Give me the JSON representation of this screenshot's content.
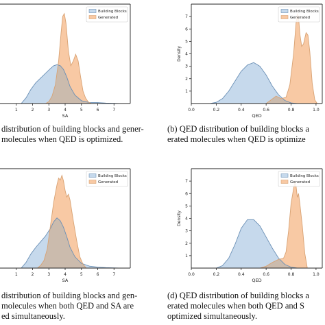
{
  "colors": {
    "building_fill": "#c6d9ec",
    "building_line": "#6a8fb5",
    "generated_fill": "#f8c9a4",
    "generated_line": "#d8a273",
    "overlap_fill": "#cbbbad"
  },
  "legend": {
    "building": "Building Blocks",
    "generated": "Generated"
  },
  "chart_data": [
    {
      "panel": "a",
      "type": "area",
      "metric": "SA",
      "xlabel": "SA",
      "ylabel": "",
      "xlim": [
        0,
        8
      ],
      "ylim": [
        0,
        1.05
      ],
      "xticks": [
        1,
        2,
        3,
        4,
        5,
        6,
        7
      ],
      "xtick_labels": [
        "1",
        "2",
        "3",
        "4",
        "5",
        "6",
        "7"
      ],
      "yticks": [],
      "ytick_labels": [],
      "legend_position": "top-right",
      "series": [
        {
          "name": "Building Blocks",
          "x": [
            1.3,
            1.6,
            1.9,
            2.2,
            2.5,
            2.8,
            3.1,
            3.3,
            3.5,
            3.7,
            3.9,
            4.1,
            4.3,
            4.6,
            5.0,
            5.5,
            6.0,
            6.5,
            7.0,
            7.3
          ],
          "y": [
            0,
            0.06,
            0.15,
            0.22,
            0.27,
            0.32,
            0.37,
            0.4,
            0.41,
            0.4,
            0.36,
            0.28,
            0.18,
            0.09,
            0.03,
            0.01,
            0.01,
            0.005,
            0.002,
            0
          ]
        },
        {
          "name": "Generated",
          "x": [
            2.8,
            3.0,
            3.2,
            3.4,
            3.6,
            3.75,
            3.85,
            3.95,
            4.05,
            4.2,
            4.35,
            4.5,
            4.65,
            4.8,
            4.95,
            5.1,
            5.25,
            5.4,
            5.6
          ],
          "y": [
            0,
            0.02,
            0.08,
            0.2,
            0.45,
            0.75,
            0.92,
            0.95,
            0.85,
            0.55,
            0.4,
            0.45,
            0.52,
            0.45,
            0.28,
            0.13,
            0.06,
            0.02,
            0
          ]
        }
      ]
    },
    {
      "panel": "b",
      "type": "area",
      "metric": "QED",
      "xlabel": "QED",
      "ylabel": "Density",
      "xlim": [
        0,
        1.05
      ],
      "ylim": [
        0,
        8
      ],
      "xticks": [
        0.0,
        0.2,
        0.4,
        0.6,
        0.8,
        1.0
      ],
      "xtick_labels": [
        "0.0",
        "0.2",
        "0.4",
        "0.6",
        "0.8",
        "1.0"
      ],
      "yticks": [
        1,
        2,
        3,
        4,
        5,
        6,
        7
      ],
      "ytick_labels": [
        "1",
        "2",
        "3",
        "4",
        "5",
        "6",
        "7"
      ],
      "legend_position": "top-right",
      "series": [
        {
          "name": "Building Blocks",
          "x": [
            0.15,
            0.2,
            0.25,
            0.3,
            0.35,
            0.4,
            0.45,
            0.5,
            0.55,
            0.6,
            0.65,
            0.7,
            0.75,
            0.8,
            0.85
          ],
          "y": [
            0,
            0.1,
            0.4,
            1.0,
            1.8,
            2.6,
            3.1,
            3.3,
            3.0,
            2.3,
            1.4,
            0.7,
            0.25,
            0.05,
            0
          ]
        },
        {
          "name": "Generated",
          "x": [
            0.6,
            0.64,
            0.68,
            0.72,
            0.76,
            0.79,
            0.82,
            0.84,
            0.85,
            0.86,
            0.87,
            0.885,
            0.9,
            0.92,
            0.935,
            0.95,
            0.97,
            0.99,
            1.01
          ],
          "y": [
            0,
            0.3,
            0.6,
            0.4,
            0.5,
            1.5,
            4.0,
            6.5,
            7.2,
            7.0,
            5.6,
            4.6,
            4.8,
            5.7,
            5.5,
            4.2,
            1.6,
            0.3,
            0
          ]
        }
      ]
    },
    {
      "panel": "c",
      "type": "area",
      "metric": "SA",
      "xlabel": "SA",
      "ylabel": "",
      "xlim": [
        0,
        8
      ],
      "ylim": [
        0,
        1.05
      ],
      "xticks": [
        1,
        2,
        3,
        4,
        5,
        6,
        7
      ],
      "xtick_labels": [
        "1",
        "2",
        "3",
        "4",
        "5",
        "6",
        "7"
      ],
      "yticks": [],
      "ytick_labels": [],
      "legend_position": "top-right",
      "series": [
        {
          "name": "Building Blocks",
          "x": [
            1.3,
            1.6,
            1.9,
            2.2,
            2.5,
            2.8,
            3.1,
            3.3,
            3.5,
            3.7,
            3.9,
            4.1,
            4.3,
            4.6,
            5.0,
            5.5,
            6.0,
            6.5,
            7.0,
            7.3
          ],
          "y": [
            0,
            0.06,
            0.15,
            0.22,
            0.28,
            0.34,
            0.42,
            0.49,
            0.53,
            0.5,
            0.43,
            0.33,
            0.22,
            0.12,
            0.05,
            0.02,
            0.01,
            0.005,
            0.002,
            0
          ]
        },
        {
          "name": "Generated",
          "x": [
            2.3,
            2.5,
            2.7,
            2.9,
            3.1,
            3.3,
            3.5,
            3.6,
            3.7,
            3.8,
            3.9,
            4.0,
            4.1,
            4.2,
            4.3,
            4.5,
            4.7,
            4.9,
            5.1,
            5.3
          ],
          "y": [
            0,
            0.03,
            0.08,
            0.2,
            0.45,
            0.7,
            0.88,
            0.95,
            0.93,
            0.98,
            0.92,
            0.82,
            0.75,
            0.78,
            0.72,
            0.5,
            0.3,
            0.12,
            0.04,
            0
          ]
        }
      ]
    },
    {
      "panel": "d",
      "type": "area",
      "metric": "QED",
      "xlabel": "QED",
      "ylabel": "Density",
      "xlim": [
        0,
        1.05
      ],
      "ylim": [
        0,
        8
      ],
      "xticks": [
        0.0,
        0.2,
        0.4,
        0.6,
        0.8,
        1.0
      ],
      "xtick_labels": [
        "0.0",
        "0.2",
        "0.4",
        "0.6",
        "0.8",
        "1.0"
      ],
      "yticks": [
        1,
        2,
        3,
        4,
        5,
        6,
        7
      ],
      "ytick_labels": [
        "1",
        "2",
        "3",
        "4",
        "5",
        "6",
        "7"
      ],
      "legend_position": "top-right",
      "series": [
        {
          "name": "Building Blocks",
          "x": [
            0.2,
            0.25,
            0.3,
            0.35,
            0.4,
            0.45,
            0.5,
            0.55,
            0.6,
            0.65,
            0.7,
            0.75,
            0.8,
            0.85
          ],
          "y": [
            0,
            0.2,
            0.8,
            1.9,
            3.2,
            3.9,
            3.9,
            3.4,
            2.5,
            1.6,
            0.8,
            0.3,
            0.08,
            0
          ]
        },
        {
          "name": "Generated",
          "x": [
            0.55,
            0.6,
            0.65,
            0.7,
            0.74,
            0.76,
            0.78,
            0.8,
            0.82,
            0.83,
            0.84,
            0.85,
            0.86,
            0.87,
            0.89,
            0.91,
            0.93
          ],
          "y": [
            0,
            0.15,
            0.45,
            0.7,
            0.8,
            1.3,
            3.0,
            5.2,
            6.4,
            6.9,
            6.6,
            5.7,
            6.0,
            5.2,
            3.4,
            1.2,
            0
          ]
        }
      ]
    }
  ],
  "captions": {
    "a": [
      "distribution of building blocks and gener-",
      "molecules when QED is optimized."
    ],
    "b": [
      "(b) QED distribution of building blocks a",
      "erated molecules when QED is optimize"
    ],
    "c": [
      "distribution of building blocks and gen-",
      "molecules when both QED and SA are",
      "ed simultaneously."
    ],
    "d": [
      "(d) QED distribution of building blocks a",
      "erated molecules when both QED and S",
      "optimized simultaneously."
    ]
  }
}
